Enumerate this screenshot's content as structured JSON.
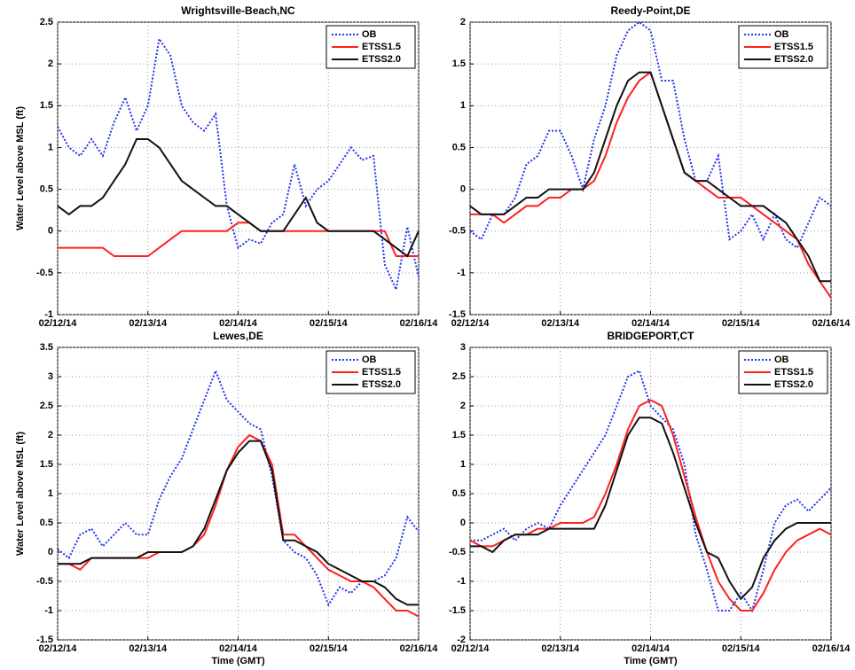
{
  "chart_data": [
    {
      "type": "line",
      "title": "Wrightsville-Beach,NC",
      "ylabel": "Water Level above MSL (ft)",
      "x": [
        0,
        0.125,
        0.25,
        0.375,
        0.5,
        0.625,
        0.75,
        0.875,
        1,
        1.125,
        1.25,
        1.375,
        1.5,
        1.625,
        1.75,
        1.875,
        2,
        2.125,
        2.25,
        2.375,
        2.5,
        2.625,
        2.75,
        2.875,
        3,
        3.125,
        3.25,
        3.375,
        3.5,
        3.625,
        3.75,
        3.875,
        4
      ],
      "xlim": [
        0,
        4
      ],
      "xticks": [
        {
          "value": 0,
          "label": "02/12/14"
        },
        {
          "value": 1,
          "label": "02/13/14"
        },
        {
          "value": 2,
          "label": "02/14/14"
        },
        {
          "value": 3,
          "label": "02/15/14"
        },
        {
          "value": 4,
          "label": "02/16/14"
        }
      ],
      "ylim": [
        -1,
        2.5
      ],
      "yticks": [
        -1,
        -0.5,
        0,
        0.5,
        1,
        1.5,
        2,
        2.5
      ],
      "grid": true,
      "legend": "upper right",
      "series": [
        {
          "name": "OB",
          "color": "#2233ee",
          "linestyle": "dotted",
          "values": [
            1.25,
            1.0,
            0.9,
            1.1,
            0.9,
            1.3,
            1.6,
            1.2,
            1.5,
            2.3,
            2.1,
            1.5,
            1.3,
            1.2,
            1.4,
            0.3,
            -0.2,
            -0.1,
            -0.15,
            0.1,
            0.2,
            0.8,
            0.3,
            0.5,
            0.6,
            0.8,
            1.0,
            0.85,
            0.9,
            -0.4,
            -0.7,
            0.05,
            -0.55
          ]
        },
        {
          "name": "ETSS1.5",
          "color": "#ff2020",
          "linestyle": "solid",
          "values": [
            -0.2,
            -0.2,
            -0.2,
            -0.2,
            -0.2,
            -0.3,
            -0.3,
            -0.3,
            -0.3,
            -0.2,
            -0.1,
            0,
            0,
            0,
            0,
            0,
            0.1,
            0.1,
            0,
            0,
            0,
            0,
            0,
            0,
            0,
            0,
            0,
            0,
            0,
            0,
            -0.3,
            -0.3,
            -0.3
          ]
        },
        {
          "name": "ETSS2.0",
          "color": "#111111",
          "linestyle": "solid",
          "values": [
            0.3,
            0.2,
            0.3,
            0.3,
            0.4,
            0.6,
            0.8,
            1.1,
            1.1,
            1.0,
            0.8,
            0.6,
            0.5,
            0.4,
            0.3,
            0.3,
            0.2,
            0.1,
            0,
            0,
            0,
            0.2,
            0.4,
            0.1,
            0,
            0,
            0,
            0,
            0,
            -0.1,
            -0.2,
            -0.3,
            0
          ]
        }
      ]
    },
    {
      "type": "line",
      "title": "Reedy-Point,DE",
      "x": [
        0,
        0.125,
        0.25,
        0.375,
        0.5,
        0.625,
        0.75,
        0.875,
        1,
        1.125,
        1.25,
        1.375,
        1.5,
        1.625,
        1.75,
        1.875,
        2,
        2.125,
        2.25,
        2.375,
        2.5,
        2.625,
        2.75,
        2.875,
        3,
        3.125,
        3.25,
        3.375,
        3.5,
        3.625,
        3.75,
        3.875,
        4
      ],
      "xlim": [
        0,
        4
      ],
      "xticks": [
        {
          "value": 0,
          "label": "02/12/14"
        },
        {
          "value": 1,
          "label": "02/13/14"
        },
        {
          "value": 2,
          "label": "02/14/14"
        },
        {
          "value": 3,
          "label": "02/15/14"
        },
        {
          "value": 4,
          "label": "02/16/14"
        }
      ],
      "ylim": [
        -1.5,
        2
      ],
      "yticks": [
        -1.5,
        -1,
        -0.5,
        0,
        0.5,
        1,
        1.5,
        2
      ],
      "grid": true,
      "legend": "upper right",
      "series": [
        {
          "name": "OB",
          "color": "#2233ee",
          "linestyle": "dotted",
          "values": [
            -0.5,
            -0.6,
            -0.3,
            -0.3,
            -0.1,
            0.3,
            0.4,
            0.7,
            0.7,
            0.4,
            0,
            0.6,
            1.0,
            1.6,
            1.9,
            2.0,
            1.9,
            1.3,
            1.3,
            0.6,
            0.1,
            0.1,
            0.4,
            -0.6,
            -0.5,
            -0.3,
            -0.6,
            -0.3,
            -0.6,
            -0.7,
            -0.4,
            -0.1,
            -0.2
          ]
        },
        {
          "name": "ETSS1.5",
          "color": "#ff2020",
          "linestyle": "solid",
          "values": [
            -0.3,
            -0.3,
            -0.3,
            -0.4,
            -0.3,
            -0.2,
            -0.2,
            -0.1,
            -0.1,
            0,
            0,
            0.1,
            0.4,
            0.8,
            1.1,
            1.3,
            1.4,
            1.0,
            0.6,
            0.2,
            0.1,
            0,
            -0.1,
            -0.1,
            -0.1,
            -0.2,
            -0.3,
            -0.4,
            -0.5,
            -0.6,
            -0.9,
            -1.1,
            -1.3
          ]
        },
        {
          "name": "ETSS2.0",
          "color": "#111111",
          "linestyle": "solid",
          "values": [
            -0.2,
            -0.3,
            -0.3,
            -0.3,
            -0.2,
            -0.1,
            -0.1,
            0,
            0,
            0,
            0,
            0.2,
            0.6,
            1.0,
            1.3,
            1.4,
            1.4,
            1.0,
            0.6,
            0.2,
            0.1,
            0.1,
            0,
            -0.1,
            -0.2,
            -0.2,
            -0.2,
            -0.3,
            -0.4,
            -0.6,
            -0.8,
            -1.1,
            -1.1
          ]
        }
      ]
    },
    {
      "type": "line",
      "title": "Lewes,DE",
      "ylabel": "Water Level above MSL (ft)",
      "xlabel": "Time (GMT)",
      "x": [
        0,
        0.125,
        0.25,
        0.375,
        0.5,
        0.625,
        0.75,
        0.875,
        1,
        1.125,
        1.25,
        1.375,
        1.5,
        1.625,
        1.75,
        1.875,
        2,
        2.125,
        2.25,
        2.375,
        2.5,
        2.625,
        2.75,
        2.875,
        3,
        3.125,
        3.25,
        3.375,
        3.5,
        3.625,
        3.75,
        3.875,
        4
      ],
      "xlim": [
        0,
        4
      ],
      "xticks": [
        {
          "value": 0,
          "label": "02/12/14"
        },
        {
          "value": 1,
          "label": "02/13/14"
        },
        {
          "value": 2,
          "label": "02/14/14"
        },
        {
          "value": 3,
          "label": "02/15/14"
        },
        {
          "value": 4,
          "label": "02/16/14"
        }
      ],
      "ylim": [
        -1.5,
        3.5
      ],
      "yticks": [
        -1.5,
        -1,
        -0.5,
        0,
        0.5,
        1,
        1.5,
        2,
        2.5,
        3,
        3.5
      ],
      "grid": true,
      "legend": "upper right",
      "series": [
        {
          "name": "OB",
          "color": "#2233ee",
          "linestyle": "dotted",
          "values": [
            0.05,
            -0.1,
            0.3,
            0.4,
            0.1,
            0.3,
            0.5,
            0.3,
            0.3,
            0.9,
            1.3,
            1.6,
            2.1,
            2.6,
            3.1,
            2.6,
            2.4,
            2.2,
            2.1,
            1.3,
            0.2,
            0,
            -0.1,
            -0.4,
            -0.9,
            -0.6,
            -0.7,
            -0.5,
            -0.5,
            -0.4,
            -0.1,
            0.6,
            0.35
          ]
        },
        {
          "name": "ETSS1.5",
          "color": "#ff2020",
          "linestyle": "solid",
          "values": [
            -0.2,
            -0.2,
            -0.3,
            -0.1,
            -0.1,
            -0.1,
            -0.1,
            -0.1,
            -0.1,
            0,
            0,
            0,
            0.1,
            0.3,
            0.8,
            1.4,
            1.8,
            2.0,
            1.9,
            1.5,
            0.3,
            0.3,
            0.1,
            -0.1,
            -0.3,
            -0.4,
            -0.5,
            -0.5,
            -0.6,
            -0.8,
            -1.0,
            -1.0,
            -1.1
          ]
        },
        {
          "name": "ETSS2.0",
          "color": "#111111",
          "linestyle": "solid",
          "values": [
            -0.2,
            -0.2,
            -0.2,
            -0.1,
            -0.1,
            -0.1,
            -0.1,
            -0.1,
            0,
            0,
            0,
            0,
            0.1,
            0.4,
            0.9,
            1.4,
            1.7,
            1.9,
            1.9,
            1.4,
            0.2,
            0.2,
            0.1,
            0,
            -0.2,
            -0.3,
            -0.4,
            -0.5,
            -0.5,
            -0.6,
            -0.8,
            -0.9,
            -0.9
          ]
        }
      ]
    },
    {
      "type": "line",
      "title": "BRIDGEPORT,CT",
      "xlabel": "Time (GMT)",
      "x": [
        0,
        0.125,
        0.25,
        0.375,
        0.5,
        0.625,
        0.75,
        0.875,
        1,
        1.125,
        1.25,
        1.375,
        1.5,
        1.625,
        1.75,
        1.875,
        2,
        2.125,
        2.25,
        2.375,
        2.5,
        2.625,
        2.75,
        2.875,
        3,
        3.125,
        3.25,
        3.375,
        3.5,
        3.625,
        3.75,
        3.875,
        4
      ],
      "xlim": [
        0,
        4
      ],
      "xticks": [
        {
          "value": 0,
          "label": "02/12/14"
        },
        {
          "value": 1,
          "label": "02/13/14"
        },
        {
          "value": 2,
          "label": "02/14/14"
        },
        {
          "value": 3,
          "label": "02/15/14"
        },
        {
          "value": 4,
          "label": "02/16/14"
        }
      ],
      "ylim": [
        -2,
        3
      ],
      "yticks": [
        -2,
        -1.5,
        -1,
        -0.5,
        0,
        0.5,
        1,
        1.5,
        2,
        2.5,
        3
      ],
      "grid": true,
      "legend": "upper right",
      "series": [
        {
          "name": "OB",
          "color": "#2233ee",
          "linestyle": "dotted",
          "values": [
            -0.3,
            -0.3,
            -0.2,
            -0.1,
            -0.3,
            -0.1,
            0,
            -0.1,
            0.3,
            0.6,
            0.9,
            1.2,
            1.5,
            2.0,
            2.5,
            2.6,
            2.0,
            1.8,
            1.6,
            1.0,
            -0.2,
            -0.8,
            -1.5,
            -1.5,
            -1.2,
            -1.5,
            -0.8,
            0,
            0.3,
            0.4,
            0.2,
            0.4,
            0.6
          ]
        },
        {
          "name": "ETSS1.5",
          "color": "#ff2020",
          "linestyle": "solid",
          "values": [
            -0.3,
            -0.4,
            -0.4,
            -0.3,
            -0.2,
            -0.2,
            -0.1,
            -0.1,
            0,
            0,
            0,
            0.1,
            0.5,
            1.0,
            1.6,
            2.0,
            2.1,
            2.0,
            1.5,
            0.8,
            0.1,
            -0.5,
            -1.0,
            -1.3,
            -1.5,
            -1.5,
            -1.2,
            -0.8,
            -0.5,
            -0.3,
            -0.2,
            -0.1,
            -0.2
          ]
        },
        {
          "name": "ETSS2.0",
          "color": "#111111",
          "linestyle": "solid",
          "values": [
            -0.4,
            -0.4,
            -0.5,
            -0.3,
            -0.2,
            -0.2,
            -0.2,
            -0.1,
            -0.1,
            -0.1,
            -0.1,
            -0.1,
            0.3,
            0.9,
            1.5,
            1.8,
            1.8,
            1.7,
            1.2,
            0.6,
            0,
            -0.5,
            -0.6,
            -1.0,
            -1.3,
            -1.1,
            -0.6,
            -0.3,
            -0.1,
            0,
            0,
            0,
            0
          ]
        }
      ]
    }
  ]
}
